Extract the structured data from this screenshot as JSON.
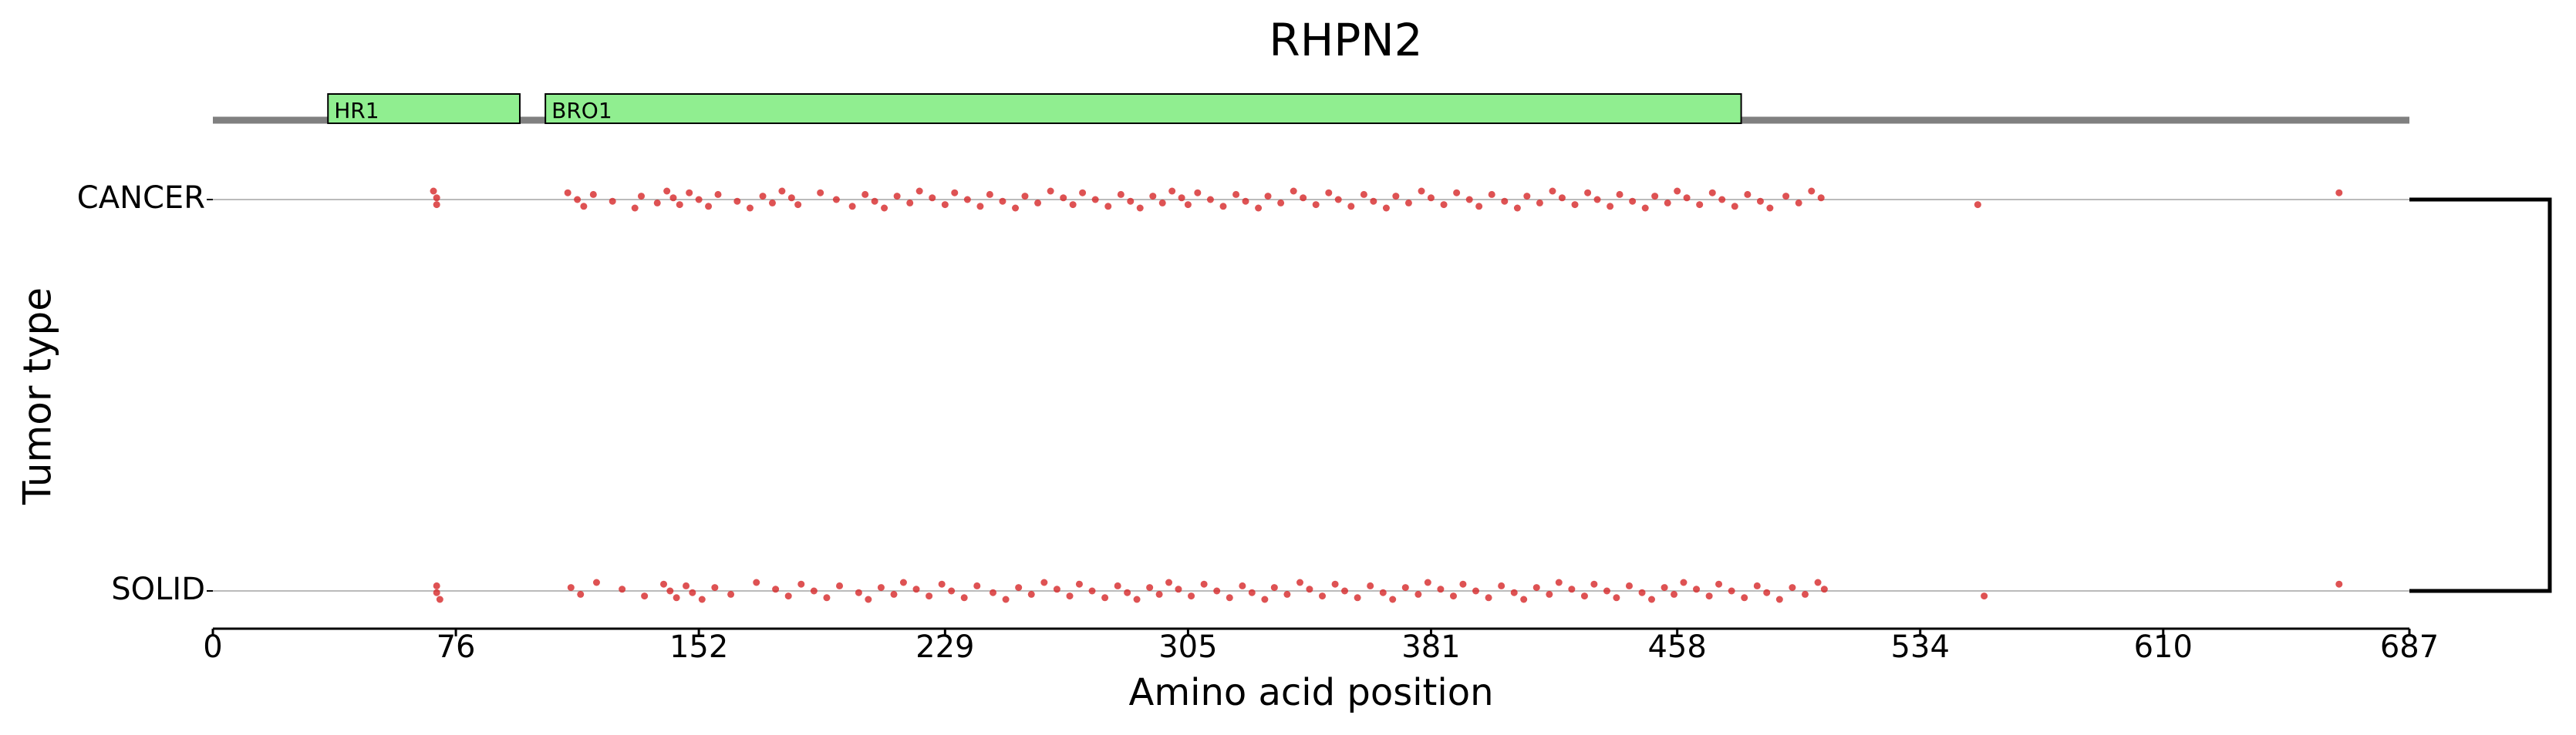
{
  "chart_data": {
    "type": "strip",
    "title": "RHPN2",
    "xlabel": "Amino acid position",
    "ylabel": "Tumor type",
    "xlim": [
      0,
      687
    ],
    "xticks": [
      0,
      76,
      152,
      229,
      305,
      381,
      458,
      534,
      610,
      687
    ],
    "domains": [
      {
        "name": "HR1",
        "start": 36,
        "end": 96
      },
      {
        "name": "BRO1",
        "start": 104,
        "end": 478
      }
    ],
    "domain_color": "#90ee90",
    "categories": [
      "CANCER",
      "SOLID"
    ],
    "series": [
      {
        "color": "#d62728",
        "values": [
          69,
          70,
          70,
          111,
          114,
          116,
          119,
          125,
          132,
          134,
          139,
          142,
          144,
          146,
          149,
          152,
          155,
          158,
          164,
          168,
          172,
          175,
          178,
          181,
          183,
          190,
          195,
          200,
          204,
          207,
          210,
          214,
          218,
          221,
          225,
          229,
          232,
          236,
          240,
          243,
          247,
          251,
          254,
          258,
          262,
          266,
          269,
          272,
          276,
          280,
          284,
          287,
          290,
          294,
          297,
          300,
          303,
          305,
          308,
          312,
          316,
          320,
          323,
          327,
          330,
          334,
          338,
          341,
          345,
          349,
          352,
          356,
          360,
          363,
          367,
          370,
          374,
          378,
          381,
          385,
          389,
          393,
          396,
          400,
          404,
          408,
          411,
          415,
          419,
          422,
          426,
          430,
          433,
          437,
          440,
          444,
          448,
          451,
          455,
          458,
          461,
          465,
          469,
          472,
          476,
          480,
          484,
          487,
          492,
          496,
          500,
          503,
          552,
          665
        ]
      },
      {
        "color": "#d62728",
        "values": [
          70,
          70,
          71,
          112,
          115,
          120,
          128,
          135,
          141,
          143,
          145,
          148,
          150,
          153,
          157,
          162,
          170,
          176,
          180,
          184,
          188,
          192,
          196,
          202,
          205,
          209,
          213,
          216,
          220,
          224,
          228,
          231,
          235,
          239,
          244,
          248,
          252,
          256,
          260,
          264,
          268,
          271,
          275,
          279,
          283,
          286,
          289,
          293,
          296,
          299,
          302,
          306,
          310,
          314,
          318,
          322,
          325,
          329,
          332,
          336,
          340,
          343,
          347,
          351,
          354,
          358,
          362,
          366,
          369,
          373,
          377,
          380,
          384,
          388,
          391,
          395,
          399,
          403,
          407,
          410,
          414,
          418,
          421,
          425,
          429,
          432,
          436,
          439,
          443,
          447,
          450,
          454,
          457,
          460,
          464,
          468,
          471,
          475,
          479,
          483,
          486,
          490,
          494,
          498,
          502,
          504,
          554,
          665
        ]
      }
    ]
  }
}
